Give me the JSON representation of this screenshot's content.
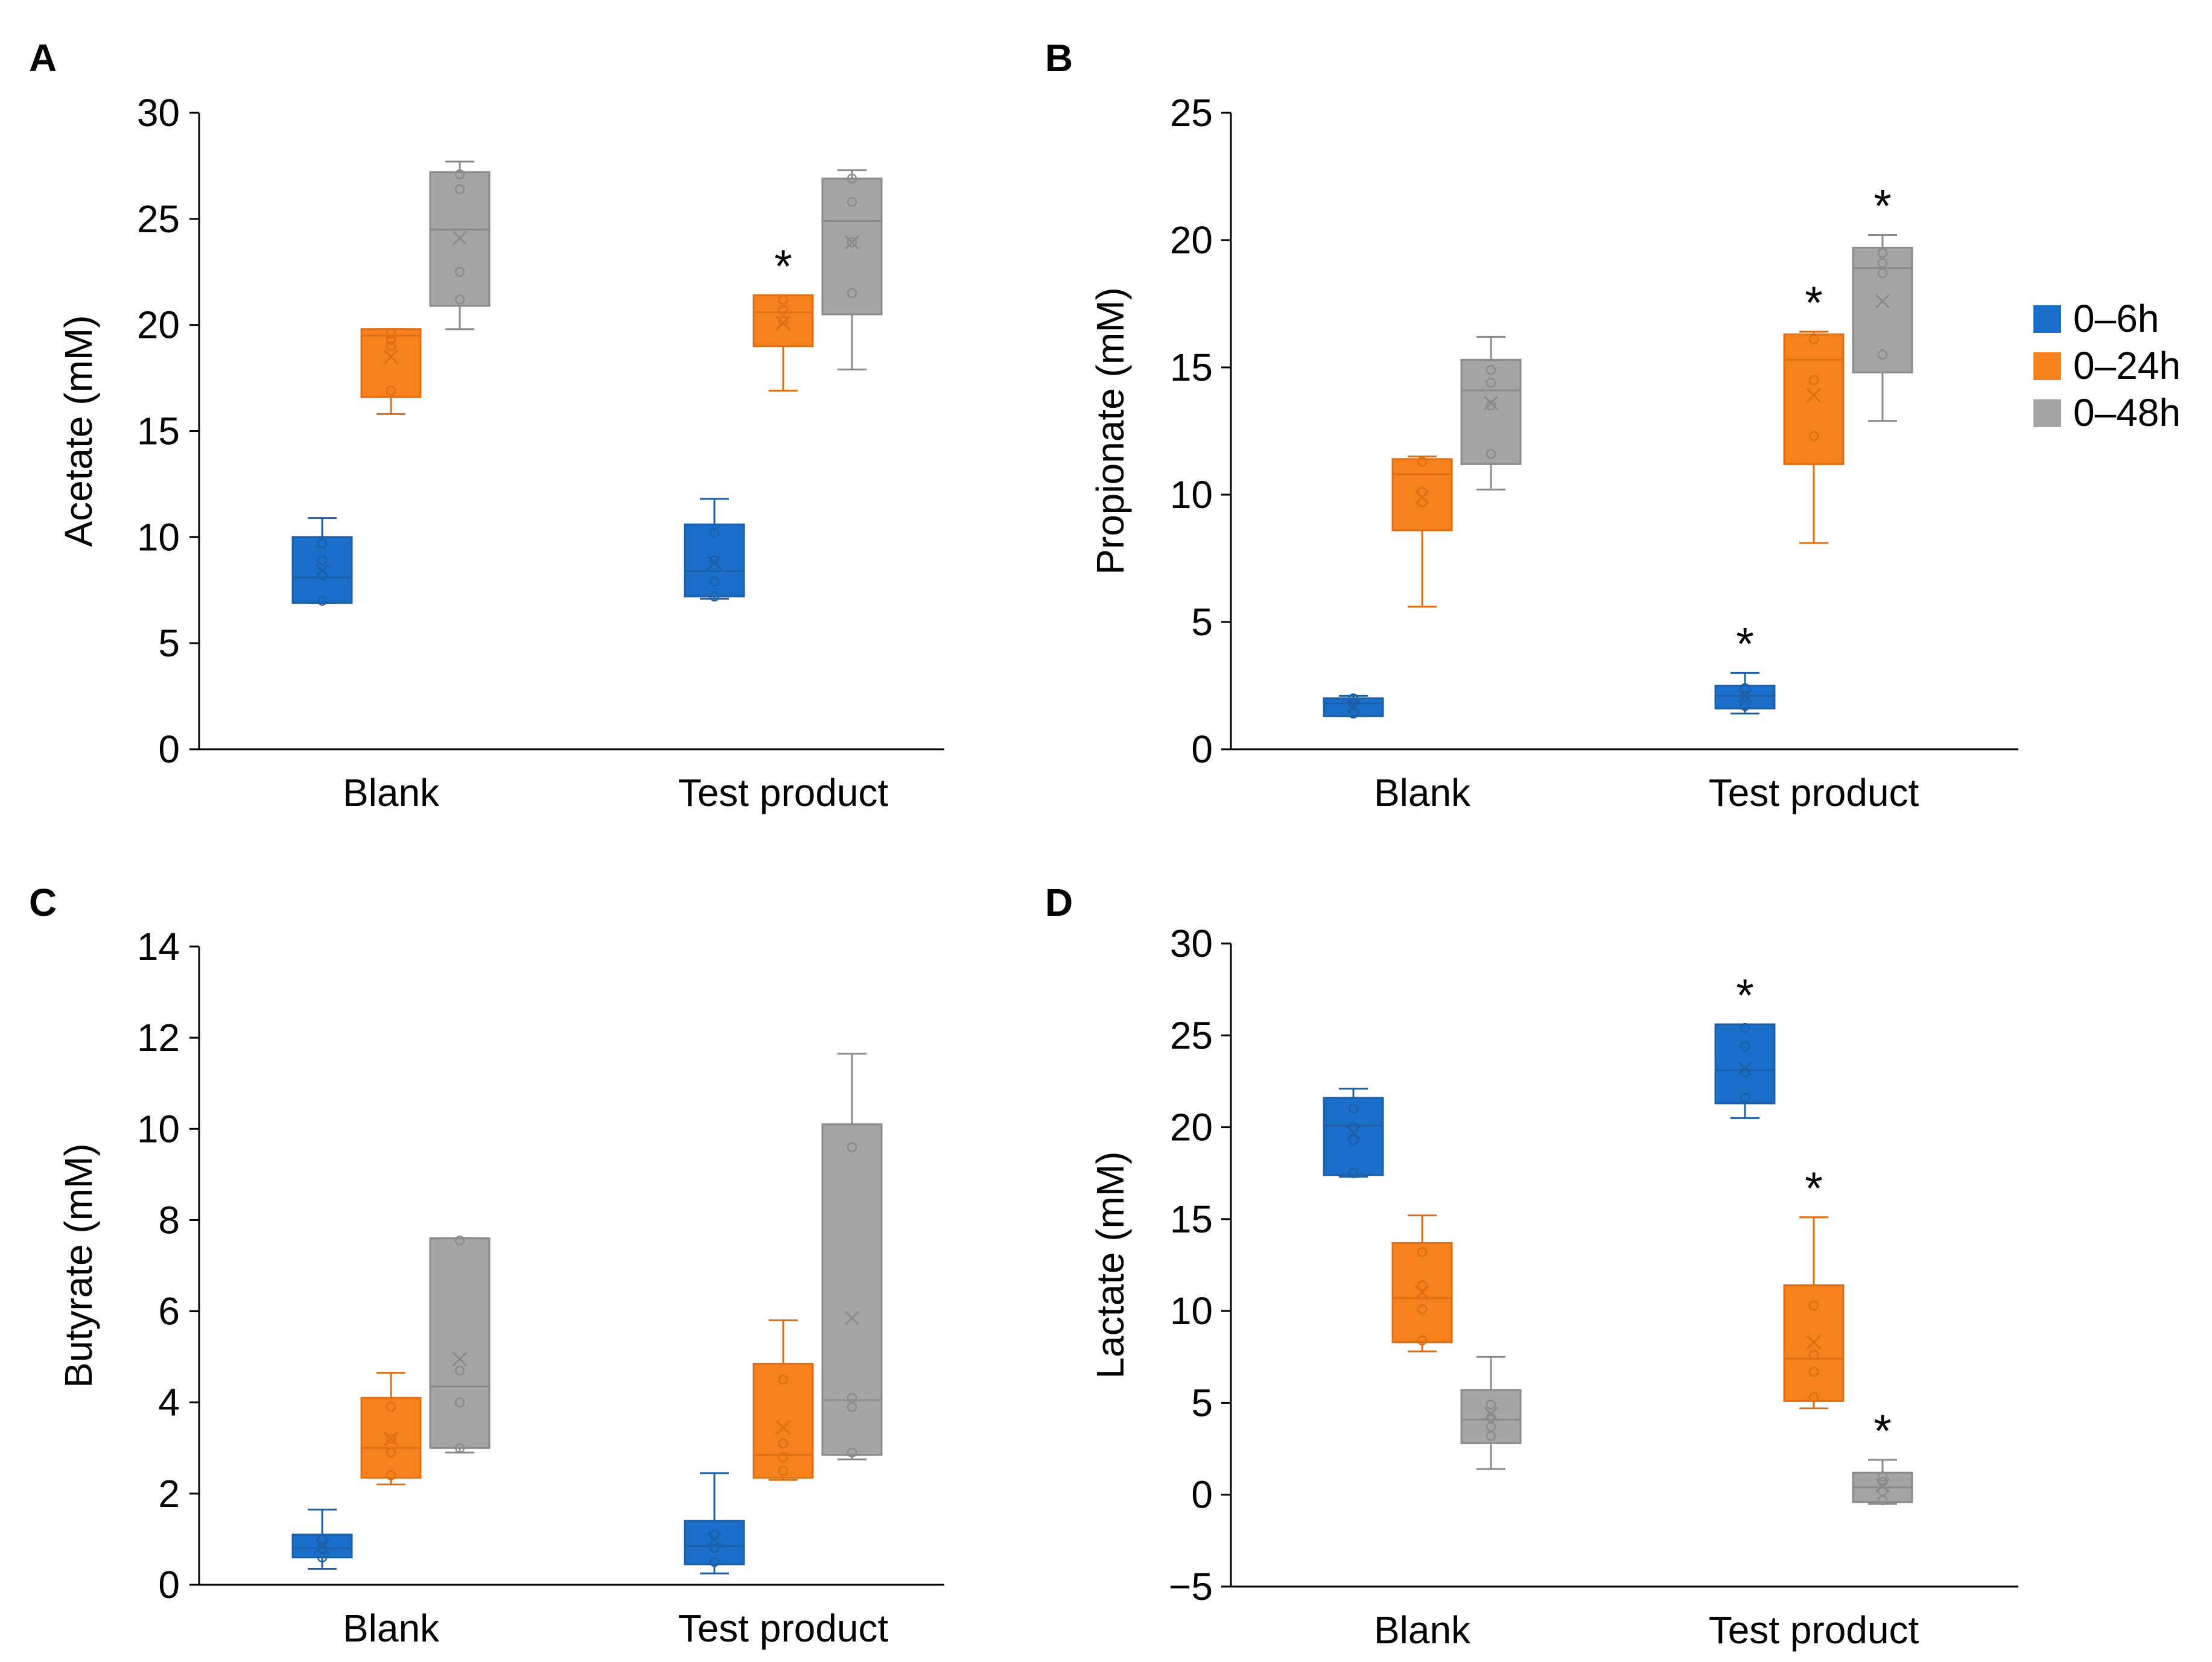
{
  "legend": {
    "entries": [
      {
        "label": "0–6h",
        "color": "#1a6fca"
      },
      {
        "label": "0–24h",
        "color": "#f7801f"
      },
      {
        "label": "0–48h",
        "color": "#a5a5a5"
      }
    ]
  },
  "chart_data": [
    {
      "panel": "A",
      "type": "box",
      "ylabel": "Acetate (mM)",
      "ylim": [
        0,
        30
      ],
      "yticks": [
        0,
        5,
        10,
        15,
        20,
        25,
        30
      ],
      "categories": [
        "Blank",
        "Test product"
      ],
      "series": [
        {
          "name": "0–6h",
          "boxes": [
            {
              "min": 6.9,
              "q1": 6.9,
              "median": 8.1,
              "q3": 10.0,
              "max": 10.9,
              "mean": 8.4,
              "points": [
                7.0,
                8.2,
                8.9,
                9.7
              ],
              "star": false
            },
            {
              "min": 7.1,
              "q1": 7.2,
              "median": 8.4,
              "q3": 10.6,
              "max": 11.8,
              "mean": 8.8,
              "points": [
                7.2,
                7.9,
                8.9,
                10.2
              ],
              "star": false
            }
          ]
        },
        {
          "name": "0–24h",
          "boxes": [
            {
              "min": 15.8,
              "q1": 16.6,
              "median": 19.5,
              "q3": 19.8,
              "max": 19.8,
              "mean": 18.5,
              "points": [
                16.9,
                19.0,
                19.3,
                19.6
              ],
              "star": false
            },
            {
              "min": 16.9,
              "q1": 19.0,
              "median": 20.6,
              "q3": 21.4,
              "max": 21.4,
              "mean": 20.1,
              "points": [
                20.2,
                20.7,
                21.2
              ],
              "star": true
            }
          ]
        },
        {
          "name": "0–48h",
          "boxes": [
            {
              "min": 19.8,
              "q1": 20.9,
              "median": 24.5,
              "q3": 27.2,
              "max": 27.7,
              "mean": 24.1,
              "points": [
                21.2,
                22.5,
                26.4,
                27.1
              ],
              "star": false
            },
            {
              "min": 17.9,
              "q1": 20.5,
              "median": 24.9,
              "q3": 26.9,
              "max": 27.3,
              "mean": 23.9,
              "points": [
                21.5,
                23.9,
                25.8,
                26.9
              ],
              "star": false
            }
          ]
        }
      ]
    },
    {
      "panel": "B",
      "type": "box",
      "ylabel": "Propionate (mM)",
      "ylim": [
        0,
        25
      ],
      "yticks": [
        0,
        5,
        10,
        15,
        20,
        25
      ],
      "categories": [
        "Blank",
        "Test product"
      ],
      "series": [
        {
          "name": "0–6h",
          "boxes": [
            {
              "min": 1.3,
              "q1": 1.3,
              "median": 1.8,
              "q3": 2.0,
              "max": 2.1,
              "mean": 1.7,
              "points": [
                1.4,
                1.8,
                2.0
              ],
              "star": false
            },
            {
              "min": 1.4,
              "q1": 1.6,
              "median": 2.1,
              "q3": 2.5,
              "max": 3.0,
              "mean": 2.1,
              "points": [
                1.7,
                2.1,
                2.4
              ],
              "star": true
            }
          ]
        },
        {
          "name": "0–24h",
          "boxes": [
            {
              "min": 5.6,
              "q1": 8.6,
              "median": 10.8,
              "q3": 11.4,
              "max": 11.5,
              "mean": 9.9,
              "points": [
                9.7,
                10.1,
                11.3
              ],
              "star": false
            },
            {
              "min": 8.1,
              "q1": 11.2,
              "median": 15.3,
              "q3": 16.3,
              "max": 16.4,
              "mean": 13.9,
              "points": [
                12.3,
                14.5,
                16.1
              ],
              "star": true
            }
          ]
        },
        {
          "name": "0–48h",
          "boxes": [
            {
              "min": 10.2,
              "q1": 11.2,
              "median": 14.1,
              "q3": 15.3,
              "max": 16.2,
              "mean": 13.6,
              "points": [
                11.6,
                13.5,
                14.4,
                14.9
              ],
              "star": false
            },
            {
              "min": 12.9,
              "q1": 14.8,
              "median": 18.9,
              "q3": 19.7,
              "max": 20.2,
              "mean": 17.6,
              "points": [
                15.5,
                18.7,
                19.1,
                19.5
              ],
              "star": true
            }
          ]
        }
      ]
    },
    {
      "panel": "C",
      "type": "box",
      "ylabel": "Butyrate (mM)",
      "ylim": [
        0,
        14
      ],
      "yticks": [
        0,
        2,
        4,
        6,
        8,
        10,
        12,
        14
      ],
      "categories": [
        "Blank",
        "Test product"
      ],
      "series": [
        {
          "name": "0–6h",
          "boxes": [
            {
              "min": 0.35,
              "q1": 0.6,
              "median": 0.8,
              "q3": 1.1,
              "max": 1.65,
              "mean": 0.85,
              "points": [
                0.6,
                0.8,
                1.0
              ],
              "star": false
            },
            {
              "min": 0.25,
              "q1": 0.45,
              "median": 0.85,
              "q3": 1.4,
              "max": 2.45,
              "mean": 1.0,
              "points": [
                0.5,
                0.8,
                1.1
              ],
              "star": false
            }
          ]
        },
        {
          "name": "0–24h",
          "boxes": [
            {
              "min": 2.2,
              "q1": 2.35,
              "median": 3.0,
              "q3": 4.1,
              "max": 4.65,
              "mean": 3.2,
              "points": [
                2.4,
                2.9,
                3.2,
                3.9
              ],
              "star": false
            },
            {
              "min": 2.3,
              "q1": 2.35,
              "median": 2.85,
              "q3": 4.85,
              "max": 5.8,
              "mean": 3.45,
              "points": [
                2.5,
                2.8,
                3.1,
                4.5
              ],
              "star": false
            }
          ]
        },
        {
          "name": "0–48h",
          "boxes": [
            {
              "min": 2.9,
              "q1": 3.0,
              "median": 4.35,
              "q3": 7.6,
              "max": 7.6,
              "mean": 4.95,
              "points": [
                3.0,
                4.0,
                4.7,
                7.55
              ],
              "star": false
            },
            {
              "min": 2.75,
              "q1": 2.85,
              "median": 4.05,
              "q3": 10.1,
              "max": 11.65,
              "mean": 5.85,
              "points": [
                2.9,
                3.9,
                4.1,
                9.6
              ],
              "star": false
            }
          ]
        }
      ]
    },
    {
      "panel": "D",
      "type": "box",
      "ylabel": "Lactate (mM)",
      "ylim": [
        -5,
        30
      ],
      "yticks": [
        -5,
        0,
        5,
        10,
        15,
        20,
        25,
        30
      ],
      "categories": [
        "Blank",
        "Test product"
      ],
      "series": [
        {
          "name": "0–6h",
          "boxes": [
            {
              "min": 17.3,
              "q1": 17.4,
              "median": 20.1,
              "q3": 21.6,
              "max": 22.1,
              "mean": 19.7,
              "points": [
                17.5,
                19.3,
                20.0,
                21.0
              ],
              "star": false
            },
            {
              "min": 20.5,
              "q1": 21.3,
              "median": 23.1,
              "q3": 25.6,
              "max": 25.6,
              "mean": 23.2,
              "points": [
                21.6,
                23.0,
                24.4,
                25.4
              ],
              "star": true
            }
          ]
        },
        {
          "name": "0–24h",
          "boxes": [
            {
              "min": 7.8,
              "q1": 8.3,
              "median": 10.7,
              "q3": 13.7,
              "max": 15.2,
              "mean": 11.0,
              "points": [
                8.4,
                10.1,
                11.4,
                13.2
              ],
              "star": false
            },
            {
              "min": 4.7,
              "q1": 5.1,
              "median": 7.4,
              "q3": 11.4,
              "max": 15.1,
              "mean": 8.3,
              "points": [
                5.3,
                6.7,
                7.6,
                10.3
              ],
              "star": true
            }
          ]
        },
        {
          "name": "0–48h",
          "boxes": [
            {
              "min": 1.4,
              "q1": 2.8,
              "median": 4.1,
              "q3": 5.7,
              "max": 7.5,
              "mean": 4.4,
              "points": [
                3.2,
                3.7,
                4.2,
                4.9
              ],
              "star": false
            },
            {
              "min": -0.5,
              "q1": -0.4,
              "median": 0.4,
              "q3": 1.2,
              "max": 1.9,
              "mean": 0.5,
              "points": [
                -0.3,
                0.2,
                0.7,
                1.0
              ],
              "star": true
            }
          ]
        }
      ]
    }
  ]
}
